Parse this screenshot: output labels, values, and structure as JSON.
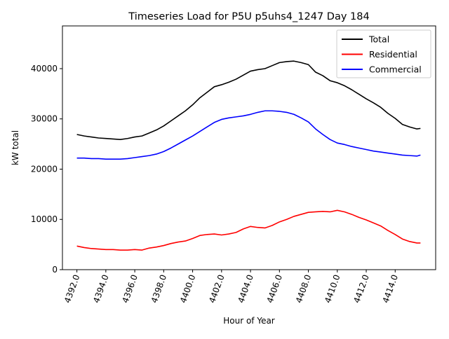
{
  "chart_data": {
    "type": "line",
    "title": "Timeseries Load for P5U p5uhs4_1247  Day 184",
    "xlabel": "Hour of Year",
    "ylabel": "kW total",
    "xlim": [
      4391.0,
      4416.8
    ],
    "ylim": [
      0,
      48500
    ],
    "xticks": [
      4392,
      4394,
      4396,
      4398,
      4400,
      4402,
      4404,
      4406,
      4408,
      4410,
      4412,
      4414
    ],
    "xtick_labels": [
      "4392.0",
      "4394.0",
      "4396.0",
      "4398.0",
      "4400.0",
      "4402.0",
      "4404.0",
      "4406.0",
      "4408.0",
      "4410.0",
      "4412.0",
      "4414.0"
    ],
    "yticks": [
      0,
      10000,
      20000,
      30000,
      40000
    ],
    "ytick_labels": [
      "0",
      "10000",
      "20000",
      "30000",
      "40000"
    ],
    "grid": false,
    "legend_position": "top-right",
    "x": [
      4392.0,
      4392.5,
      4393.0,
      4393.5,
      4394.0,
      4394.5,
      4395.0,
      4395.5,
      4396.0,
      4396.5,
      4397.0,
      4397.5,
      4398.0,
      4398.5,
      4399.0,
      4399.5,
      4400.0,
      4400.5,
      4401.0,
      4401.5,
      4402.0,
      4402.5,
      4403.0,
      4403.5,
      4404.0,
      4404.5,
      4405.0,
      4405.5,
      4406.0,
      4406.5,
      4407.0,
      4407.5,
      4408.0,
      4408.5,
      4409.0,
      4409.5,
      4410.0,
      4410.5,
      4411.0,
      4411.5,
      4412.0,
      4412.5,
      4413.0,
      4413.5,
      4414.0,
      4414.5,
      4415.0,
      4415.5,
      4415.75
    ],
    "series": [
      {
        "name": "Total",
        "color": "#000000",
        "values": [
          26900,
          26600,
          26400,
          26200,
          26100,
          26000,
          25900,
          26100,
          26400,
          26600,
          27200,
          27800,
          28600,
          29600,
          30600,
          31600,
          32800,
          34200,
          35300,
          36400,
          36800,
          37300,
          37900,
          38700,
          39500,
          39800,
          40000,
          40600,
          41200,
          41400,
          41500,
          41200,
          40800,
          39300,
          38600,
          37600,
          37200,
          36600,
          35800,
          34900,
          34000,
          33200,
          32300,
          31100,
          30100,
          28900,
          28400,
          28000,
          28100
        ]
      },
      {
        "name": "Residential",
        "color": "#ff0000",
        "values": [
          4700,
          4400,
          4200,
          4100,
          4000,
          4000,
          3900,
          3900,
          4000,
          3900,
          4300,
          4500,
          4800,
          5200,
          5500,
          5700,
          6200,
          6800,
          7000,
          7100,
          6900,
          7100,
          7400,
          8100,
          8600,
          8400,
          8300,
          8800,
          9500,
          10000,
          10600,
          11000,
          11400,
          11500,
          11600,
          11500,
          11800,
          11500,
          11000,
          10400,
          9900,
          9300,
          8700,
          7800,
          7000,
          6100,
          5600,
          5300,
          5300
        ]
      },
      {
        "name": "Commercial",
        "color": "#0000ff",
        "values": [
          22200,
          22200,
          22100,
          22100,
          22000,
          22000,
          22000,
          22100,
          22300,
          22500,
          22700,
          23000,
          23500,
          24200,
          25000,
          25800,
          26600,
          27500,
          28400,
          29300,
          29900,
          30200,
          30400,
          30600,
          30900,
          31300,
          31600,
          31600,
          31500,
          31300,
          30900,
          30200,
          29400,
          28000,
          26900,
          25900,
          25200,
          24900,
          24500,
          24200,
          23900,
          23600,
          23400,
          23200,
          23000,
          22800,
          22700,
          22600,
          22800
        ]
      }
    ]
  }
}
